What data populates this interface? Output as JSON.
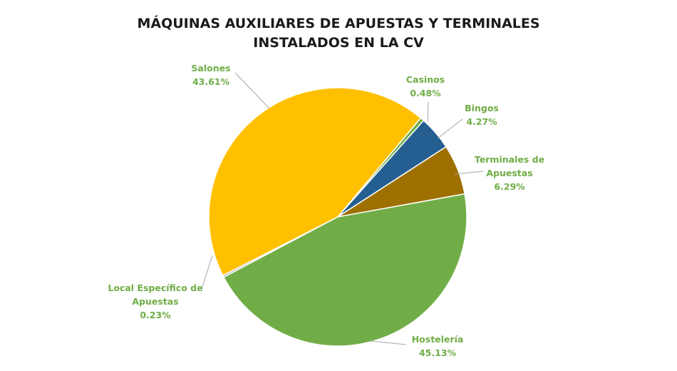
{
  "chart_data": {
    "type": "pie",
    "title_lines": [
      "MÁQUINAS AUXILIARES DE APUESTAS Y TERMINALES",
      "INSTALADOS EN LA CV"
    ],
    "slices": [
      {
        "name": "Casinos",
        "label_lines": [
          "Casinos"
        ],
        "value": 0.48,
        "value_text": "0.48%",
        "color": "#70ad47"
      },
      {
        "name": "Bingos",
        "label_lines": [
          "Bingos"
        ],
        "value": 4.27,
        "value_text": "4.27%",
        "color": "#255e91"
      },
      {
        "name": "Terminales de Apuestas",
        "label_lines": [
          "Terminales de",
          "Apuestas"
        ],
        "value": 6.29,
        "value_text": "6.29%",
        "color": "#9e7000"
      },
      {
        "name": "Hostelería",
        "label_lines": [
          "Hostelería"
        ],
        "value": 45.13,
        "value_text": "45.13%",
        "color": "#70ad47"
      },
      {
        "name": "Local Específico de Apuestas",
        "label_lines": [
          "Local Específico de",
          "Apuestas"
        ],
        "value": 0.23,
        "value_text": "0.23%",
        "color": "#a5a5a5"
      },
      {
        "name": "Salones",
        "label_lines": [
          "Salones"
        ],
        "value": 43.61,
        "value_text": "43.61%",
        "color": "#ffc000"
      }
    ],
    "label_color": "#70ad47"
  }
}
